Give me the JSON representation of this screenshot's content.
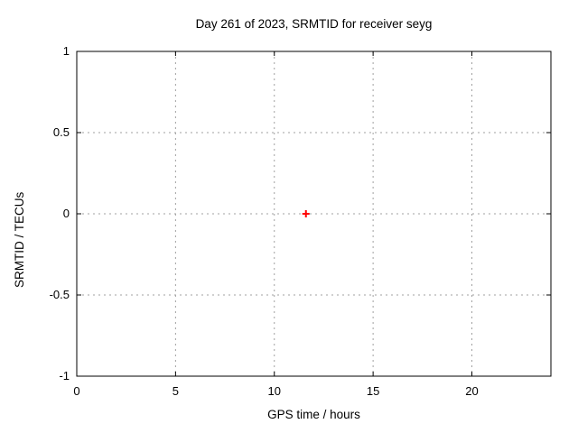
{
  "chart_data": {
    "type": "scatter",
    "title": "Day 261 of 2023, SRMTID for receiver seyg",
    "xlabel": "GPS time / hours",
    "ylabel": "SRMTID / TECUs",
    "xlim": [
      0,
      24
    ],
    "ylim": [
      -1,
      1
    ],
    "xticks": [
      0,
      5,
      10,
      15,
      20
    ],
    "xtick_labels": [
      "0",
      "5",
      "10",
      "15",
      "20"
    ],
    "yticks": [
      1,
      0.5,
      0,
      -0.5,
      -1
    ],
    "ytick_labels": [
      "1",
      "0.5",
      "0",
      "-0.5",
      "-1"
    ],
    "grid": true,
    "legend": "none",
    "colors": {
      "background": "#ffffff",
      "border": "#000000",
      "grid": "#a0a0a0",
      "text": "#000000",
      "marker": "#ff0000"
    },
    "marker_style": "plus",
    "series": [
      {
        "name": "SRMTID",
        "points": [
          {
            "x": 11.6,
            "y": 0
          }
        ]
      }
    ]
  }
}
